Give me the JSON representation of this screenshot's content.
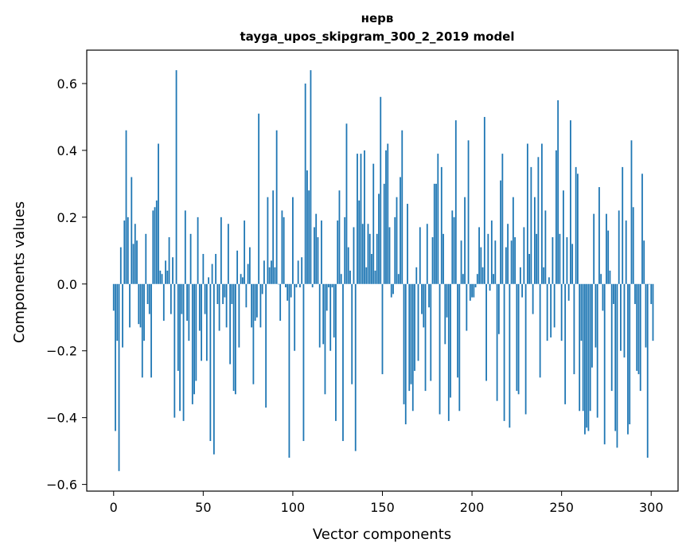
{
  "chart_data": {
    "type": "bar",
    "title": "нерв",
    "subtitle": "tayga_upos_skipgram_300_2_2019 model",
    "xlabel": "Vector components",
    "ylabel": "Components values",
    "xlim": [
      -15,
      315
    ],
    "ylim": [
      -0.62,
      0.7
    ],
    "xticks": [
      0,
      50,
      100,
      150,
      200,
      250,
      300
    ],
    "yticks": [
      -0.6,
      -0.4,
      -0.2,
      0.0,
      0.2,
      0.4,
      0.6
    ],
    "ytick_labels": [
      "−0.6",
      "−0.4",
      "−0.2",
      "0.0",
      "0.2",
      "0.4",
      "0.6"
    ],
    "grid": false,
    "bar_color": "#1f77b4",
    "values": [
      -0.08,
      -0.44,
      -0.17,
      -0.56,
      0.11,
      -0.19,
      0.19,
      0.46,
      0.2,
      -0.13,
      0.32,
      0.12,
      0.18,
      0.13,
      -0.12,
      -0.13,
      -0.28,
      -0.17,
      0.15,
      -0.06,
      -0.09,
      -0.28,
      0.22,
      0.23,
      0.25,
      0.42,
      0.04,
      0.03,
      -0.11,
      0.07,
      0.04,
      0.14,
      -0.09,
      0.08,
      -0.4,
      0.64,
      -0.26,
      -0.38,
      -0.09,
      -0.41,
      0.22,
      -0.11,
      -0.17,
      0.15,
      -0.36,
      -0.33,
      -0.29,
      0.2,
      -0.14,
      -0.23,
      0.09,
      -0.09,
      -0.23,
      0.02,
      -0.47,
      0.06,
      -0.51,
      0.09,
      -0.06,
      -0.14,
      0.2,
      -0.06,
      -0.04,
      -0.13,
      0.18,
      -0.24,
      -0.06,
      -0.32,
      -0.33,
      0.1,
      -0.19,
      0.03,
      0.02,
      0.19,
      -0.07,
      0.06,
      0.11,
      -0.13,
      -0.3,
      -0.11,
      -0.1,
      0.51,
      -0.13,
      -0.03,
      0.07,
      -0.37,
      0.26,
      0.05,
      0.07,
      0.28,
      0.05,
      0.46,
      0.0,
      -0.11,
      0.22,
      0.2,
      -0.01,
      -0.05,
      -0.52,
      -0.04,
      0.26,
      -0.2,
      -0.01,
      0.07,
      -0.01,
      0.08,
      -0.47,
      0.6,
      0.34,
      0.28,
      0.64,
      -0.01,
      0.17,
      0.21,
      0.14,
      -0.19,
      0.19,
      -0.18,
      -0.33,
      -0.08,
      -0.01,
      -0.2,
      -0.01,
      -0.16,
      -0.41,
      0.19,
      0.28,
      0.03,
      -0.47,
      0.2,
      0.48,
      0.11,
      0.04,
      -0.3,
      0.17,
      -0.5,
      0.39,
      0.25,
      0.39,
      0.18,
      0.4,
      0.05,
      0.18,
      0.15,
      0.09,
      0.36,
      0.04,
      0.15,
      0.27,
      0.56,
      -0.27,
      0.3,
      0.4,
      0.42,
      0.17,
      -0.04,
      -0.03,
      0.2,
      0.26,
      0.03,
      0.32,
      0.46,
      -0.36,
      -0.42,
      0.24,
      -0.32,
      -0.3,
      -0.38,
      -0.26,
      0.05,
      -0.23,
      0.17,
      -0.09,
      -0.13,
      -0.32,
      0.18,
      -0.07,
      -0.29,
      0.14,
      0.3,
      0.3,
      0.39,
      -0.39,
      0.35,
      0.15,
      -0.18,
      -0.1,
      -0.41,
      -0.34,
      0.22,
      0.2,
      0.49,
      -0.28,
      -0.38,
      0.13,
      0.03,
      0.26,
      -0.14,
      0.43,
      -0.05,
      -0.04,
      -0.04,
      -0.01,
      0.03,
      0.17,
      0.11,
      0.05,
      0.5,
      -0.29,
      0.15,
      -0.02,
      0.19,
      0.03,
      0.13,
      -0.35,
      -0.15,
      0.31,
      0.39,
      -0.41,
      0.11,
      0.18,
      -0.43,
      0.13,
      0.26,
      0.14,
      -0.32,
      -0.33,
      0.05,
      -0.04,
      0.17,
      -0.39,
      0.42,
      0.09,
      0.35,
      -0.09,
      0.26,
      0.15,
      0.38,
      -0.28,
      0.42,
      0.05,
      0.22,
      -0.17,
      0.02,
      -0.16,
      0.14,
      -0.13,
      0.4,
      0.55,
      0.15,
      -0.17,
      0.28,
      -0.36,
      0.14,
      -0.05,
      0.49,
      0.12,
      -0.27,
      0.35,
      0.33,
      -0.38,
      -0.17,
      -0.38,
      -0.45,
      -0.43,
      -0.44,
      -0.38,
      -0.25,
      0.21,
      -0.19,
      -0.4,
      0.29,
      0.03,
      -0.08,
      -0.48,
      0.21,
      0.16,
      0.04,
      -0.32,
      -0.06,
      -0.44,
      -0.49,
      0.22,
      -0.2,
      0.35,
      -0.22,
      0.19,
      -0.45,
      -0.42,
      0.43,
      0.23,
      -0.06,
      -0.26,
      -0.27,
      -0.32,
      0.33,
      0.13,
      -0.19,
      -0.52,
      0.0,
      -0.06,
      -0.17
    ]
  }
}
